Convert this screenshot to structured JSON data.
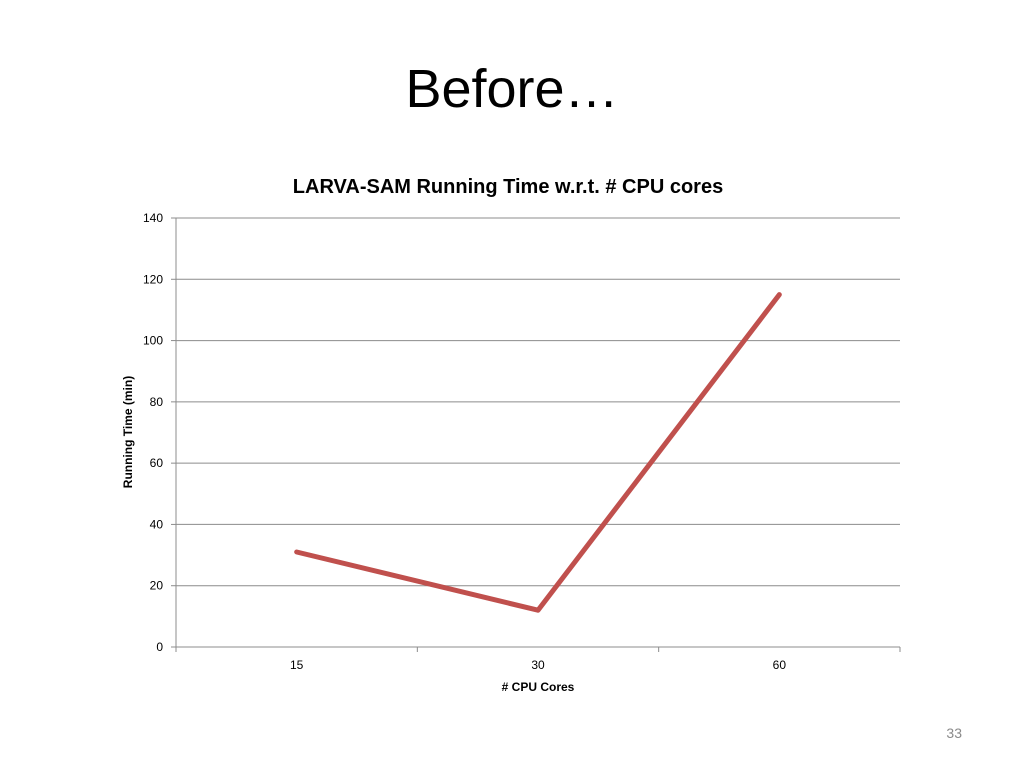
{
  "slide": {
    "title": "Before…",
    "page_number": "33"
  },
  "chart_data": {
    "type": "line",
    "title": "LARVA-SAM Running Time w.r.t. # CPU cores",
    "xlabel": "# CPU Cores",
    "ylabel": "Running Time (min)",
    "categories": [
      "15",
      "30",
      "60"
    ],
    "series": [
      {
        "name": "Running Time",
        "values": [
          31,
          12,
          115
        ],
        "color": "#c0504d"
      }
    ],
    "ylim": [
      0,
      140
    ],
    "yticks": [
      0,
      20,
      40,
      60,
      80,
      100,
      120,
      140
    ],
    "grid": true,
    "legend": "none"
  }
}
